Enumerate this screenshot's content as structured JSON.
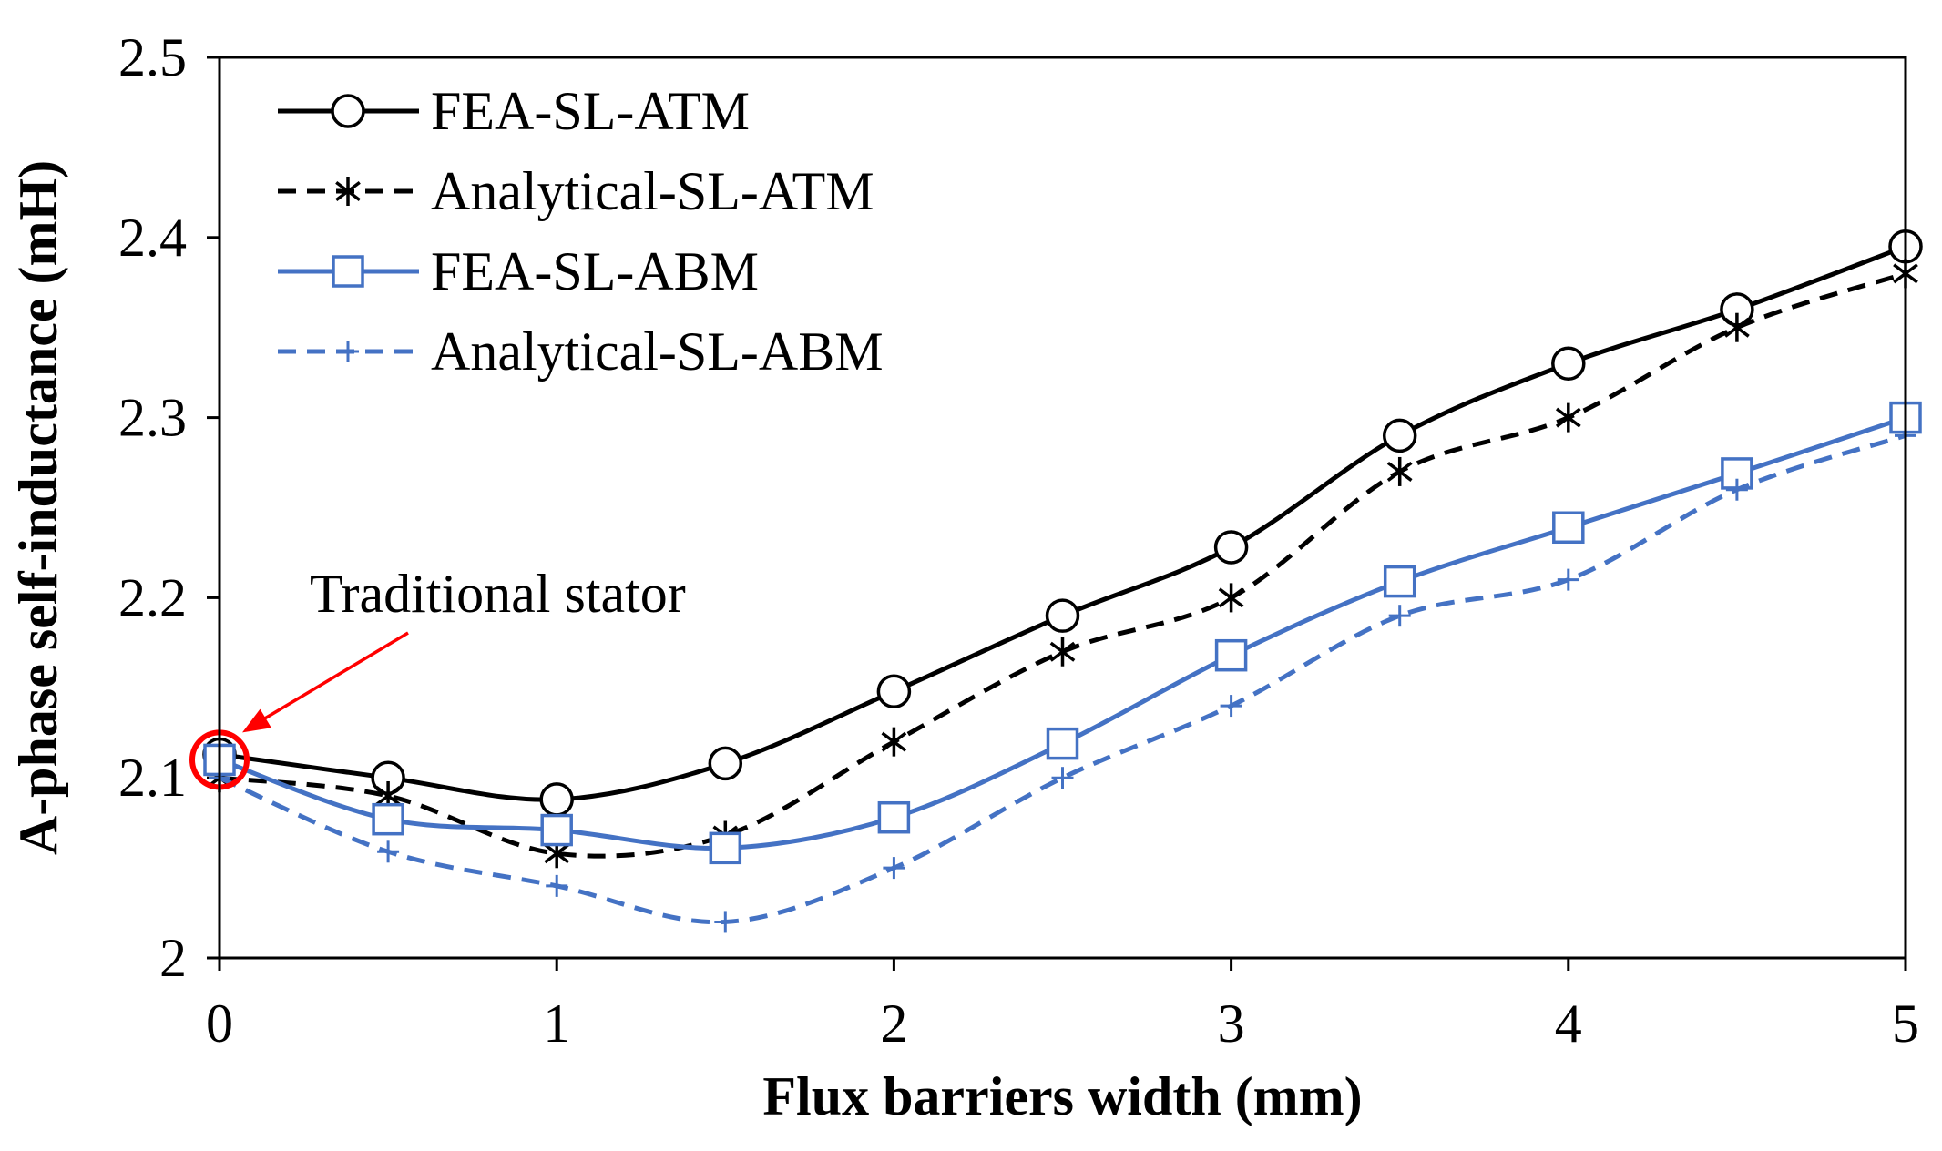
{
  "chart_data": {
    "type": "line",
    "title": "",
    "xlabel": "Flux barriers width (mm)",
    "ylabel": "A-phase self-inductance (mH)",
    "xlim": [
      0,
      5
    ],
    "ylim": [
      2,
      2.5
    ],
    "x_ticks": [
      "0",
      "1",
      "2",
      "3",
      "4",
      "5"
    ],
    "y_ticks": [
      "2",
      "2.1",
      "2.2",
      "2.3",
      "2.4",
      "2.5"
    ],
    "grid": false,
    "legend_position": "top-left",
    "x": [
      0,
      0.5,
      1,
      1.5,
      2,
      2.5,
      3,
      3.5,
      4,
      4.5,
      5
    ],
    "series": [
      {
        "name": "FEA-SL-ATM",
        "values": [
          2.113,
          2.1,
          2.088,
          2.108,
          2.148,
          2.19,
          2.228,
          2.29,
          2.33,
          2.36,
          2.395
        ],
        "color": "#000000",
        "dash": "solid",
        "marker": "circle"
      },
      {
        "name": "Analytical-SL-ATM",
        "values": [
          2.1,
          2.09,
          2.058,
          2.068,
          2.12,
          2.17,
          2.2,
          2.27,
          2.3,
          2.35,
          2.38
        ],
        "color": "#000000",
        "dash": "dashed",
        "marker": "asterisk"
      },
      {
        "name": "FEA-SL-ABM",
        "values": [
          2.11,
          2.077,
          2.071,
          2.061,
          2.078,
          2.119,
          2.168,
          2.209,
          2.239,
          2.269,
          2.3
        ],
        "color": "#4472C4",
        "dash": "solid",
        "marker": "square"
      },
      {
        "name": "Analytical-SL-ABM",
        "values": [
          2.1,
          2.059,
          2.04,
          2.02,
          2.05,
          2.1,
          2.14,
          2.19,
          2.21,
          2.26,
          2.29
        ],
        "color": "#4472C4",
        "dash": "dashed",
        "marker": "plus"
      }
    ],
    "annotations": [
      {
        "text": "Traditional  stator",
        "x": 0,
        "y": 2.11,
        "color": "#FF0000"
      }
    ]
  }
}
